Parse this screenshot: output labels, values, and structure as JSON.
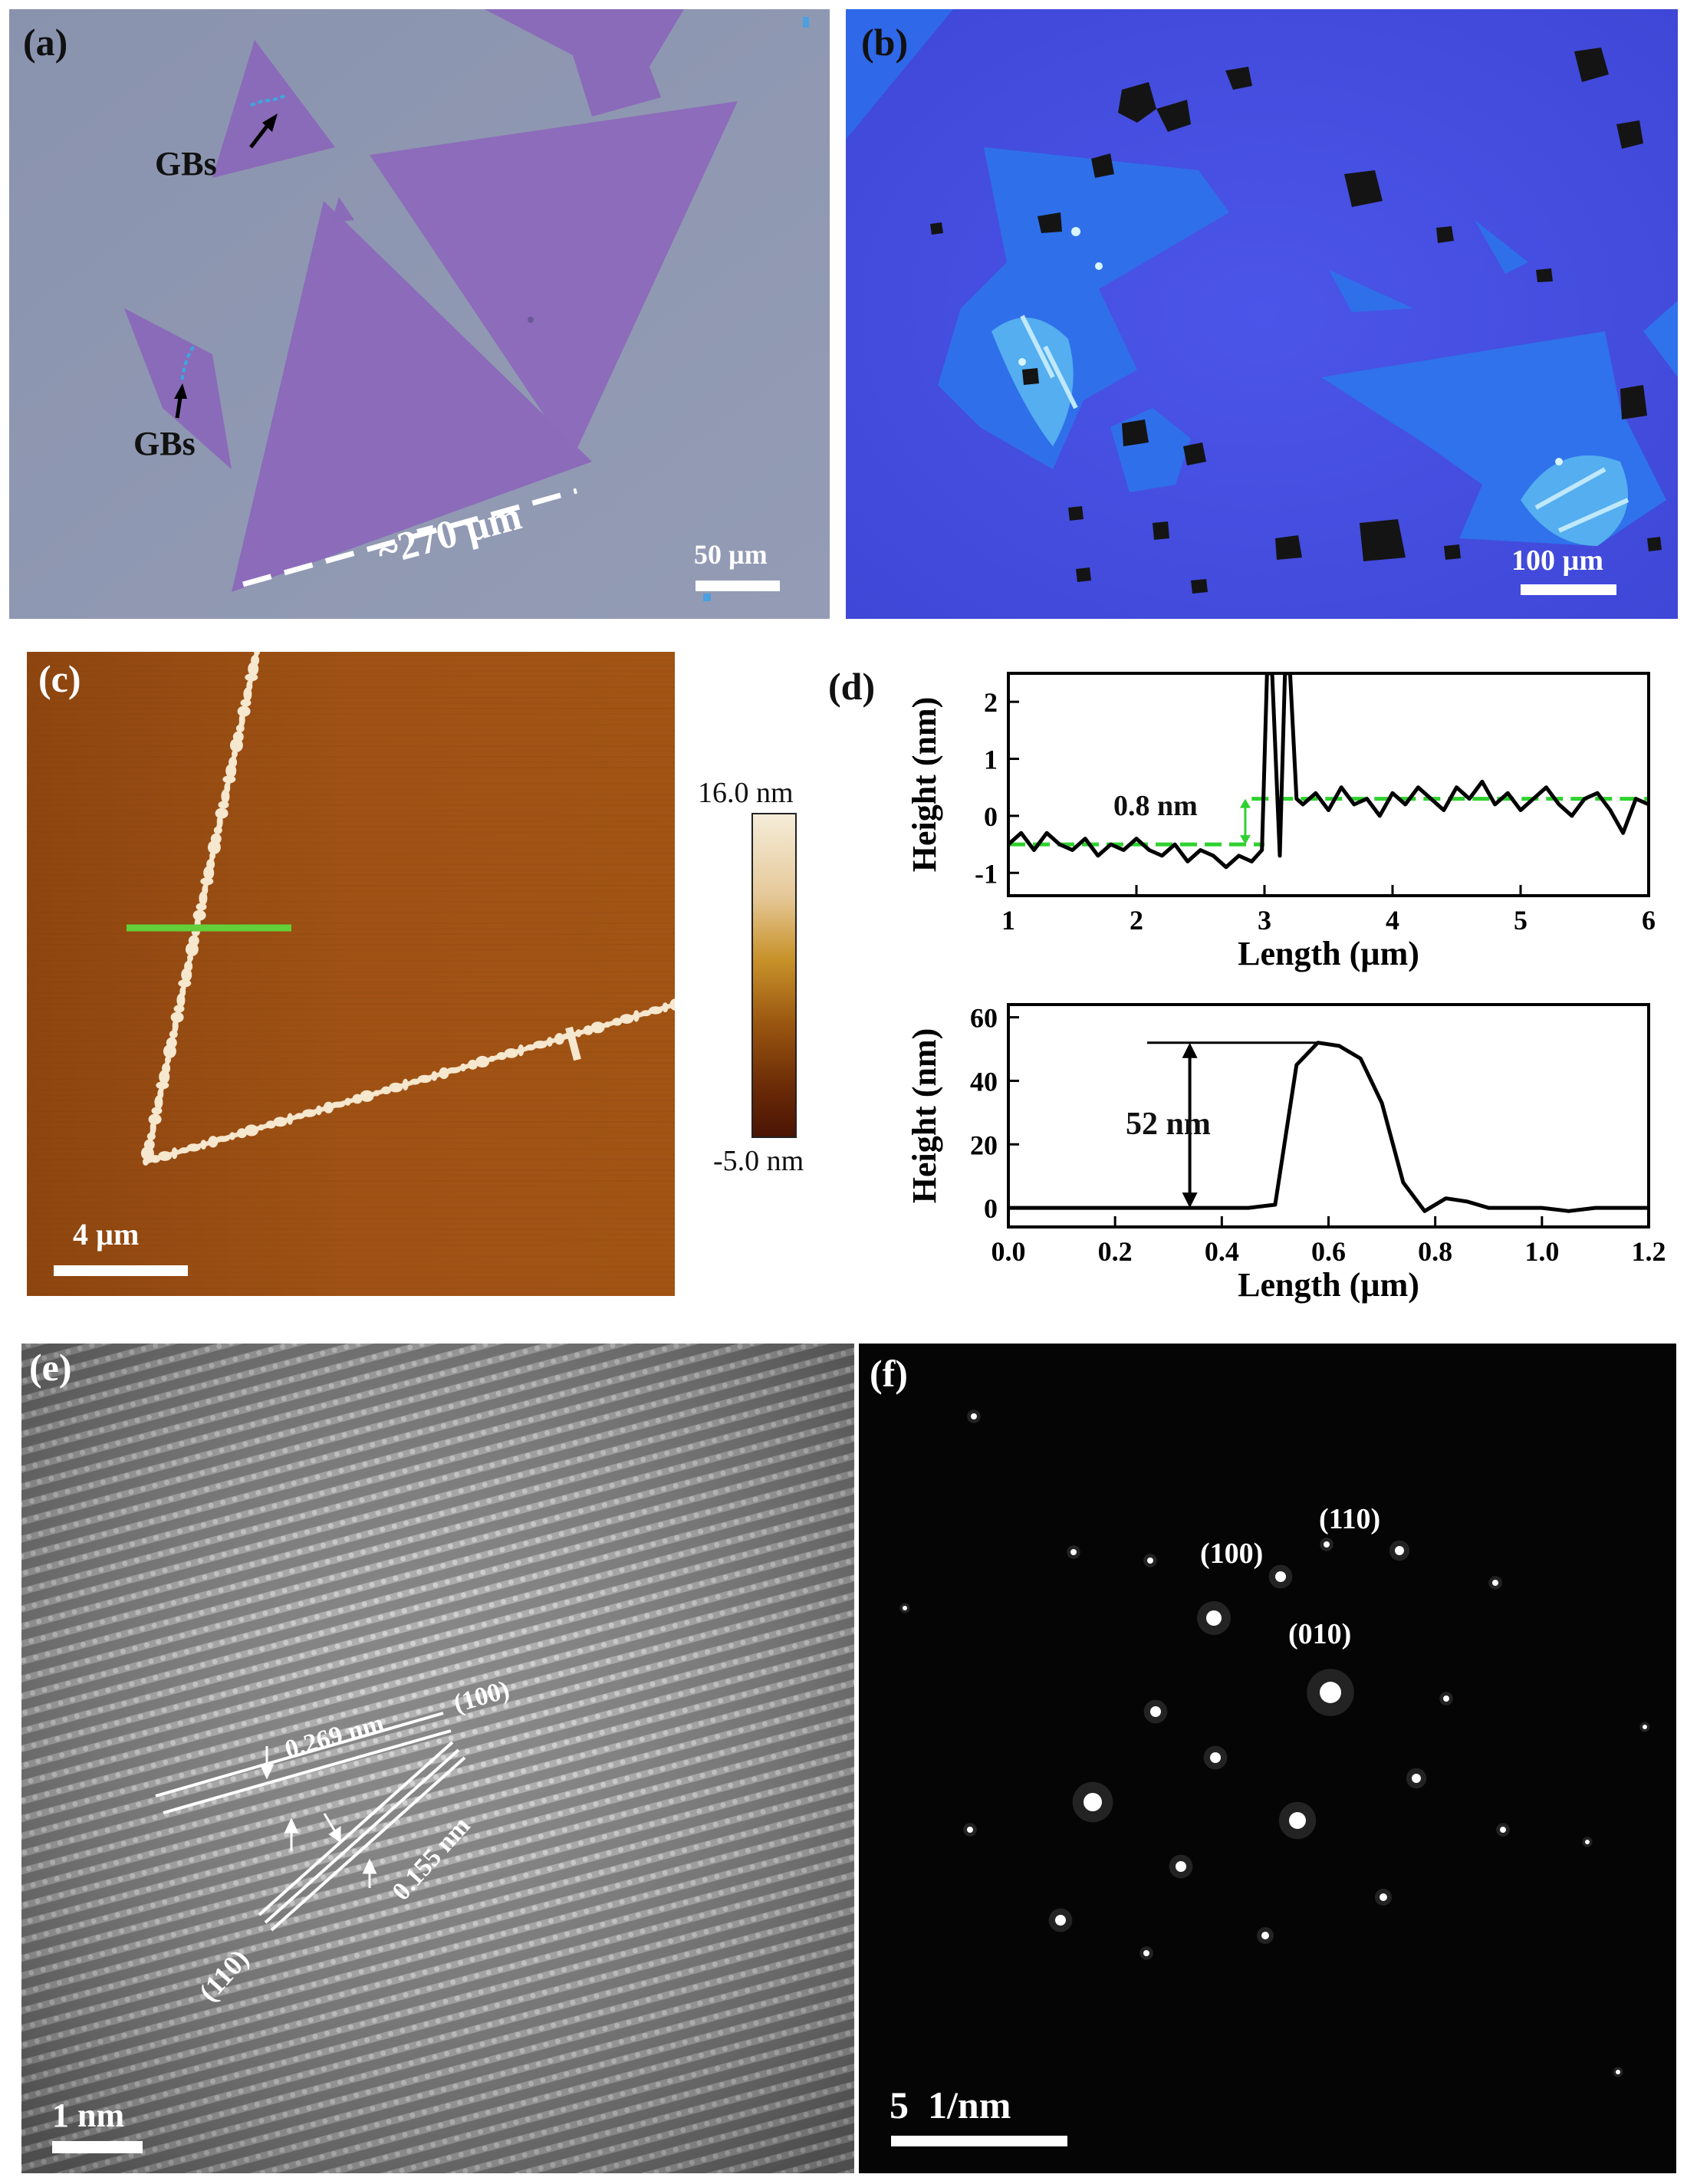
{
  "figure": {
    "panel_a": {
      "label": "(a)",
      "annotations": [
        "GBs",
        "GBs"
      ],
      "size_label": "~270 µm",
      "scale_bar": "50 µm"
    },
    "panel_b": {
      "label": "(b)",
      "scale_bar": "100 µm"
    },
    "panel_c": {
      "label": "(c)",
      "scale_bar": "4 µm",
      "colorbar_max": "16.0 nm",
      "colorbar_min": "-5.0 nm"
    },
    "panel_d": {
      "label": "(d)"
    },
    "panel_e": {
      "label": "(e)",
      "spacing_1": "0.269 nm",
      "plane_1": "(100)",
      "spacing_2": "0.155 nm",
      "plane_2": "(110)",
      "scale_bar": "1 nm"
    },
    "panel_f": {
      "label": "(f)",
      "spots": [
        "(110)",
        "(100)",
        "(010)"
      ],
      "scale_bar": "5  1/nm"
    }
  },
  "chart_data": [
    {
      "type": "line",
      "xlabel": "Length (µm)",
      "ylabel": "Height (nm)",
      "xlim": [
        1,
        6
      ],
      "ylim": [
        -1.4,
        2.5
      ],
      "xticks": [
        1,
        2,
        3,
        4,
        5,
        6
      ],
      "yticks": [
        -1,
        0,
        1,
        2
      ],
      "annotation": "0.8 nm",
      "reference_levels": [
        -0.5,
        0.3
      ],
      "x": [
        1.0,
        1.1,
        1.2,
        1.3,
        1.4,
        1.5,
        1.6,
        1.7,
        1.8,
        1.9,
        2.0,
        2.1,
        2.2,
        2.3,
        2.4,
        2.5,
        2.6,
        2.7,
        2.8,
        2.9,
        2.98,
        3.02,
        3.06,
        3.12,
        3.16,
        3.2,
        3.25,
        3.3,
        3.4,
        3.5,
        3.6,
        3.7,
        3.8,
        3.9,
        4.0,
        4.1,
        4.2,
        4.3,
        4.4,
        4.5,
        4.6,
        4.7,
        4.8,
        4.9,
        5.0,
        5.1,
        5.2,
        5.3,
        5.4,
        5.5,
        5.6,
        5.7,
        5.8,
        5.9,
        6.0
      ],
      "y": [
        -0.5,
        -0.3,
        -0.6,
        -0.3,
        -0.5,
        -0.6,
        -0.4,
        -0.7,
        -0.5,
        -0.6,
        -0.4,
        -0.6,
        -0.7,
        -0.5,
        -0.8,
        -0.6,
        -0.7,
        -0.9,
        -0.7,
        -0.8,
        -0.6,
        2.5,
        2.5,
        -0.7,
        2.5,
        2.5,
        0.3,
        0.2,
        0.4,
        0.1,
        0.5,
        0.2,
        0.3,
        0.0,
        0.4,
        0.2,
        0.5,
        0.3,
        0.1,
        0.5,
        0.3,
        0.6,
        0.2,
        0.4,
        0.1,
        0.3,
        0.5,
        0.2,
        0.0,
        0.3,
        0.4,
        0.1,
        -0.3,
        0.3,
        0.2
      ]
    },
    {
      "type": "line",
      "xlabel": "Length (µm)",
      "ylabel": "Height (nm)",
      "xlim": [
        0,
        1.2
      ],
      "ylim": [
        -6,
        64
      ],
      "xticks": [
        0.0,
        0.2,
        0.4,
        0.6,
        0.8,
        1.0,
        1.2
      ],
      "yticks": [
        0,
        20,
        40,
        60
      ],
      "annotation": "52 nm",
      "x": [
        0.0,
        0.1,
        0.2,
        0.3,
        0.4,
        0.45,
        0.5,
        0.54,
        0.58,
        0.62,
        0.66,
        0.7,
        0.74,
        0.78,
        0.82,
        0.86,
        0.9,
        0.95,
        1.0,
        1.05,
        1.1,
        1.15,
        1.2
      ],
      "y": [
        0,
        0,
        0,
        0,
        0,
        0,
        1,
        45,
        52,
        51,
        47,
        33,
        8,
        -1,
        3,
        2,
        0,
        0,
        0,
        -1,
        0,
        0,
        0
      ]
    }
  ]
}
